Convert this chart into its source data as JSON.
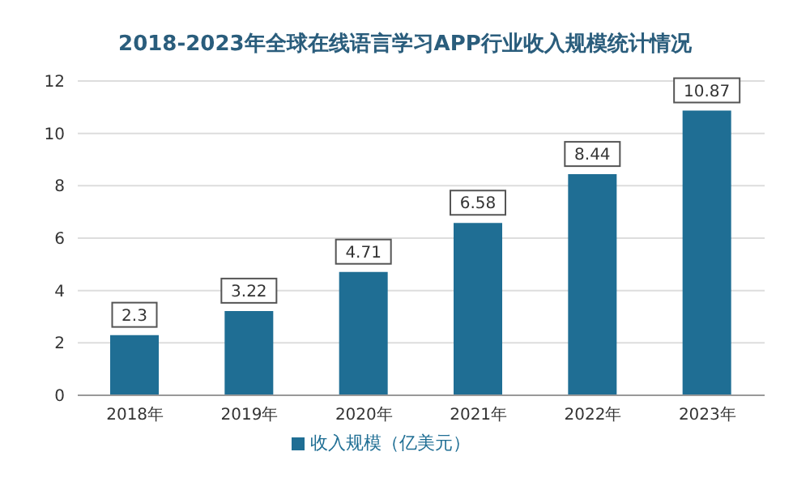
{
  "chart_data": {
    "type": "bar",
    "title": "2018-2023年全球在线语言学习APP行业收入规模统计情况",
    "categories": [
      "2018年",
      "2019年",
      "2020年",
      "2021年",
      "2022年",
      "2023年"
    ],
    "series": [
      {
        "name": "收入规模（亿美元）",
        "color": "#1f6e94",
        "values": [
          2.3,
          3.22,
          4.71,
          6.58,
          8.44,
          10.87
        ]
      }
    ],
    "ylim": [
      0,
      12
    ],
    "yticks": [
      0,
      2,
      4,
      6,
      8,
      10,
      12
    ],
    "grid": "y",
    "legend": "bottom",
    "data_labels": true
  }
}
